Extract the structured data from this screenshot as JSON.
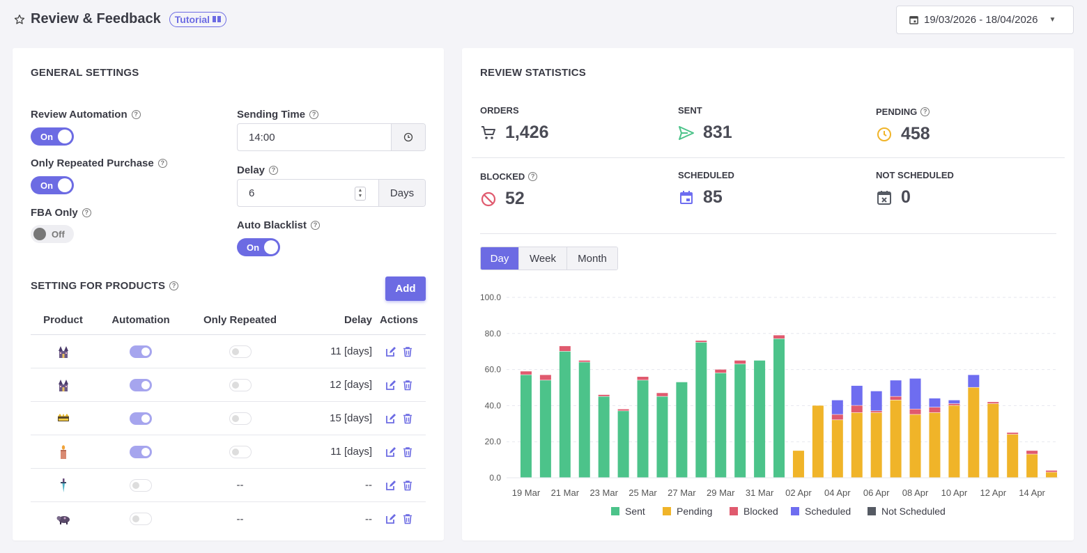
{
  "header": {
    "title": "Review & Feedback",
    "tutorial_label": "Tutorial",
    "date_range": "19/03/2026 - 18/04/2026"
  },
  "general": {
    "title": "GENERAL SETTINGS",
    "review_automation": {
      "label": "Review Automation",
      "state": "On"
    },
    "only_repeated": {
      "label": "Only Repeated Purchase",
      "state": "On"
    },
    "fba_only": {
      "label": "FBA Only",
      "state": "Off"
    },
    "sending_time": {
      "label": "Sending Time",
      "value": "14:00"
    },
    "delay": {
      "label": "Delay",
      "value": "6",
      "unit": "Days"
    },
    "auto_blacklist": {
      "label": "Auto Blacklist",
      "state": "On"
    }
  },
  "products": {
    "title": "SETTING FOR PRODUCTS",
    "add_label": "Add",
    "columns": [
      "Product",
      "Automation",
      "Only Repeated",
      "Delay",
      "Actions"
    ],
    "rows": [
      {
        "icon": "castle-icon",
        "automation": true,
        "repeated": false,
        "delay": "11 [days]",
        "repeated_text": ""
      },
      {
        "icon": "castle-icon",
        "automation": true,
        "repeated": false,
        "delay": "12 [days]",
        "repeated_text": ""
      },
      {
        "icon": "crown-icon",
        "automation": true,
        "repeated": false,
        "delay": "15 [days]",
        "repeated_text": ""
      },
      {
        "icon": "candle-icon",
        "automation": true,
        "repeated": false,
        "delay": "11 [days]",
        "repeated_text": ""
      },
      {
        "icon": "dagger-icon",
        "automation": false,
        "repeated": null,
        "delay": "--",
        "repeated_text": "--"
      },
      {
        "icon": "cow-icon",
        "automation": false,
        "repeated": null,
        "delay": "--",
        "repeated_text": "--"
      }
    ]
  },
  "stats": {
    "title": "REVIEW STATISTICS",
    "orders": {
      "label": "ORDERS",
      "value": "1,426"
    },
    "sent": {
      "label": "SENT",
      "value": "831"
    },
    "pending": {
      "label": "PENDING",
      "value": "458"
    },
    "blocked": {
      "label": "BLOCKED",
      "value": "52"
    },
    "scheduled": {
      "label": "SCHEDULED",
      "value": "85"
    },
    "not_scheduled": {
      "label": "NOT SCHEDULED",
      "value": "0"
    }
  },
  "period_tabs": [
    "Day",
    "Week",
    "Month"
  ],
  "active_period": "Day",
  "colors": {
    "accent": "#6c6be3",
    "sent": "#4cc38a",
    "pending": "#f0b429",
    "blocked": "#e05a6e",
    "scheduled": "#6e6df0",
    "not_scheduled": "#555a63"
  },
  "chart_data": {
    "type": "bar",
    "stacked": true,
    "categories": [
      "19 Mar",
      "20 Mar",
      "21 Mar",
      "22 Mar",
      "23 Mar",
      "24 Mar",
      "25 Mar",
      "26 Mar",
      "27 Mar",
      "28 Mar",
      "29 Mar",
      "30 Mar",
      "31 Mar",
      "01 Apr",
      "02 Apr",
      "03 Apr",
      "04 Apr",
      "05 Apr",
      "06 Apr",
      "07 Apr",
      "08 Apr",
      "09 Apr",
      "10 Apr",
      "11 Apr",
      "12 Apr",
      "13 Apr",
      "14 Apr",
      "15 Apr"
    ],
    "tick_labels": [
      "19 Mar",
      "21 Mar",
      "23 Mar",
      "25 Mar",
      "27 Mar",
      "29 Mar",
      "31 Mar",
      "02 Apr",
      "04 Apr",
      "06 Apr",
      "08 Apr",
      "10 Apr",
      "12 Apr",
      "14 Apr"
    ],
    "ylim": [
      0,
      100
    ],
    "yticks": [
      "100.0",
      "80.0",
      "60.0",
      "40.0",
      "20.0",
      "0.0"
    ],
    "grid": true,
    "legend_position": "bottom",
    "series": [
      {
        "name": "Sent",
        "color": "#4cc38a",
        "values": [
          57,
          54,
          70,
          64,
          45,
          37,
          54,
          45,
          53,
          75,
          58,
          63,
          65,
          77,
          0,
          0,
          0,
          0,
          0,
          0,
          0,
          0,
          0,
          0,
          0,
          0,
          0,
          0
        ]
      },
      {
        "name": "Pending",
        "color": "#f0b429",
        "values": [
          0,
          0,
          0,
          0,
          0,
          0,
          0,
          0,
          0,
          0,
          0,
          0,
          0,
          0,
          15,
          40,
          32,
          36,
          36,
          43,
          35,
          36,
          40,
          50,
          41,
          24,
          13,
          3
        ]
      },
      {
        "name": "Blocked",
        "color": "#e05a6e",
        "values": [
          2,
          3,
          3,
          1,
          1,
          1,
          2,
          2,
          0,
          1,
          2,
          2,
          0,
          2,
          0,
          0,
          3,
          4,
          1,
          2,
          3,
          3,
          1,
          0,
          1,
          1,
          2,
          1
        ]
      },
      {
        "name": "Scheduled",
        "color": "#6e6df0",
        "values": [
          0,
          0,
          0,
          0,
          0,
          0,
          0,
          0,
          0,
          0,
          0,
          0,
          0,
          0,
          0,
          0,
          8,
          11,
          11,
          9,
          17,
          5,
          2,
          7,
          0,
          0,
          0,
          0
        ]
      },
      {
        "name": "Not Scheduled",
        "color": "#555a63",
        "values": [
          0,
          0,
          0,
          0,
          0,
          0,
          0,
          0,
          0,
          0,
          0,
          0,
          0,
          0,
          0,
          0,
          0,
          0,
          0,
          0,
          0,
          0,
          0,
          0,
          0,
          0,
          0,
          0
        ]
      }
    ]
  }
}
